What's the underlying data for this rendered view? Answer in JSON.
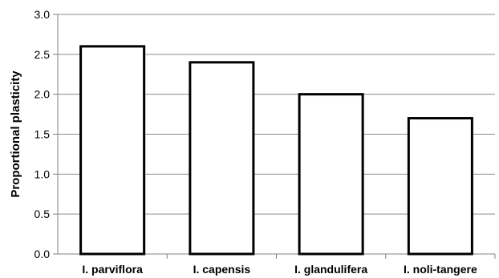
{
  "chart_data": {
    "type": "bar",
    "categories": [
      "I. parviflora",
      "I. capensis",
      "I. glandulifera",
      "I. noli-tangere"
    ],
    "values": [
      2.6,
      2.4,
      2.0,
      1.7
    ],
    "title": "",
    "xlabel": "",
    "ylabel": "Proportional plasticity",
    "ylim": [
      0,
      3.0
    ],
    "yticks": [
      "0.0",
      "0.5",
      "1.0",
      "1.5",
      "2.0",
      "2.5",
      "3.0"
    ],
    "grid": true,
    "legend": "none"
  },
  "colors": {
    "bar_fill": "#ffffff",
    "bar_stroke": "#000000",
    "grid": "#8c8c8c",
    "axis": "#808080"
  }
}
